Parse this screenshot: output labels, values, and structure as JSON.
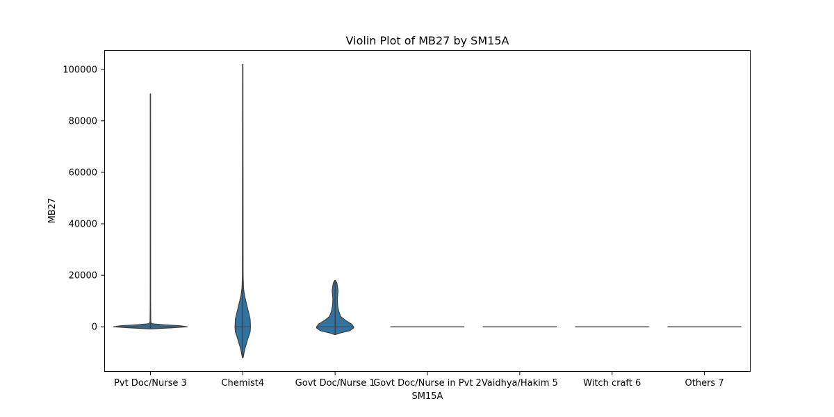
{
  "chart_data": {
    "type": "violin",
    "title": "Violin Plot of MB27 by SM15A",
    "xlabel": "SM15A",
    "ylabel": "MB27",
    "ylim": [
      -17500,
      107500
    ],
    "yticks": [
      0,
      20000,
      40000,
      60000,
      80000,
      100000
    ],
    "ytick_labels": [
      "0",
      "20000",
      "40000",
      "60000",
      "80000",
      "100000"
    ],
    "grid": false,
    "categories": [
      "Pvt Doc/Nurse 3",
      "Chemist4",
      "Govt Doc/Nurse 1",
      "Govt Doc/Nurse in Pvt 2",
      "Vaidhya/Hakim 5",
      "Witch craft 6",
      "Others 7"
    ],
    "violins": [
      {
        "category": "Pvt Doc/Nurse 3",
        "min": -800,
        "max": 90500,
        "median": 0,
        "profile": [
          [
            -800,
            0.05
          ],
          [
            -400,
            0.6
          ],
          [
            0,
            1.0
          ],
          [
            400,
            0.8
          ],
          [
            800,
            0.35
          ],
          [
            1200,
            0.03
          ],
          [
            2000,
            0.01
          ],
          [
            10000,
            0.004
          ],
          [
            90500,
            0.002
          ]
        ]
      },
      {
        "category": "Chemist4",
        "min": -12000,
        "max": 102000,
        "median": 0,
        "profile": [
          [
            -12000,
            0.01
          ],
          [
            -9000,
            0.05
          ],
          [
            -5000,
            0.13
          ],
          [
            -2000,
            0.2
          ],
          [
            0,
            0.21
          ],
          [
            3000,
            0.2
          ],
          [
            6000,
            0.15
          ],
          [
            9000,
            0.1
          ],
          [
            12000,
            0.05
          ],
          [
            15000,
            0.02
          ],
          [
            20000,
            0.01
          ],
          [
            102000,
            0.005
          ]
        ]
      },
      {
        "category": "Govt Doc/Nurse 1",
        "min": -3000,
        "max": 18000,
        "median": 0,
        "profile": [
          [
            -3000,
            0.02
          ],
          [
            -2500,
            0.12
          ],
          [
            -1500,
            0.4
          ],
          [
            -500,
            0.5
          ],
          [
            0,
            0.5
          ],
          [
            1000,
            0.45
          ],
          [
            2500,
            0.28
          ],
          [
            4000,
            0.15
          ],
          [
            6000,
            0.1
          ],
          [
            8000,
            0.07
          ],
          [
            11000,
            0.06
          ],
          [
            14000,
            0.08
          ],
          [
            15000,
            0.07
          ],
          [
            17000,
            0.05
          ],
          [
            18000,
            0.01
          ]
        ]
      },
      {
        "category": "Govt Doc/Nurse in Pvt 2",
        "min": 0,
        "max": 0,
        "median": 0,
        "profile": []
      },
      {
        "category": "Vaidhya/Hakim 5",
        "min": 0,
        "max": 0,
        "median": 0,
        "profile": []
      },
      {
        "category": "Witch craft 6",
        "min": 0,
        "max": 0,
        "median": 0,
        "profile": []
      },
      {
        "category": "Others 7",
        "min": 0,
        "max": 0,
        "median": 0,
        "profile": []
      }
    ],
    "colors": {
      "fill": "#3274a1",
      "stroke": "#3f3f3f"
    }
  }
}
